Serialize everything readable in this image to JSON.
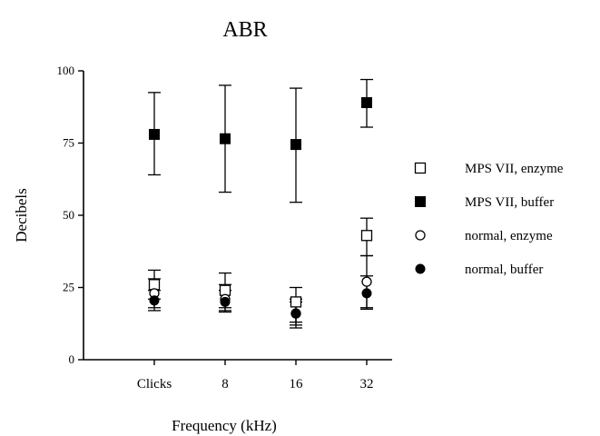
{
  "chart_data": {
    "type": "scatter",
    "title": "ABR",
    "xlabel": "Frequency (kHz)",
    "ylabel": "Decibels",
    "categories": [
      "Clicks",
      "8",
      "16",
      "32"
    ],
    "ylim": [
      0,
      100
    ],
    "yticks": [
      "0",
      "25",
      "50",
      "75",
      "100"
    ],
    "grid": false,
    "legend_position": "right",
    "series": [
      {
        "name": "MPS VII, enzyme",
        "marker": "square-open",
        "color": "#000000",
        "values": [
          26,
          24,
          20,
          43
        ],
        "err_low": [
          21,
          18,
          13,
          36
        ],
        "err_high": [
          31,
          30,
          25,
          49
        ]
      },
      {
        "name": "MPS VII, buffer",
        "marker": "square-filled",
        "color": "#000000",
        "values": [
          78,
          76.5,
          74.5,
          89
        ],
        "err_low": [
          64,
          58,
          54.5,
          80.5
        ],
        "err_high": [
          92.5,
          95,
          94,
          97
        ]
      },
      {
        "name": "normal, enzyme",
        "marker": "circle-open",
        "color": "#000000",
        "values": [
          23,
          21,
          16,
          27
        ],
        "err_low": [
          18,
          17,
          12,
          18
        ],
        "err_high": [
          28,
          26,
          20,
          36
        ]
      },
      {
        "name": "normal, buffer",
        "marker": "circle-filled",
        "color": "#000000",
        "values": [
          20.5,
          20,
          16,
          23
        ],
        "err_low": [
          17,
          16.5,
          11,
          17.5
        ],
        "err_high": [
          24,
          24,
          21,
          29
        ]
      }
    ]
  }
}
